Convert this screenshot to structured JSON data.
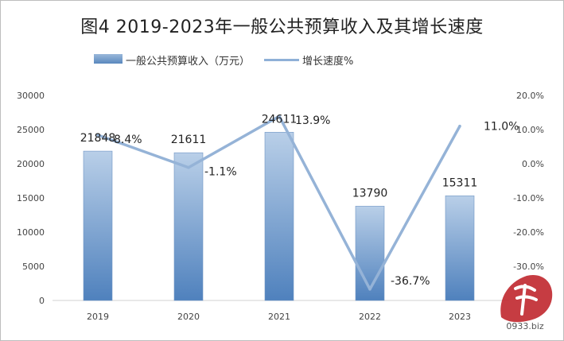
{
  "title": "图4   2019-2023年一般公共预算收入及其增长速度",
  "legend": {
    "bar": "一般公共预算收入（万元）",
    "line": "增长速度%"
  },
  "watermark_text": "0933.biz",
  "colors": {
    "bar_top": "#b9cfe8",
    "bar_bottom": "#4f81bd",
    "line": "#95b3d7"
  },
  "chart_data": {
    "type": "bar",
    "categories": [
      "2019",
      "2020",
      "2021",
      "2022",
      "2023"
    ],
    "series": [
      {
        "name": "一般公共预算收入（万元）",
        "type": "bar",
        "axis": "left",
        "values": [
          21848,
          21611,
          24611,
          13790,
          15311
        ],
        "labels": [
          "21848",
          "21611",
          "24611",
          "13790",
          "15311"
        ]
      },
      {
        "name": "增长速度%",
        "type": "line",
        "axis": "right",
        "values": [
          8.4,
          -1.1,
          13.9,
          -36.7,
          11.0
        ],
        "labels": [
          "8.4%",
          "-1.1%",
          "13.9%",
          "-36.7%",
          "11.0%"
        ]
      }
    ],
    "y_left": {
      "min": 0,
      "max": 30000,
      "ticks": [
        "0",
        "5000",
        "10000",
        "15000",
        "20000",
        "25000",
        "30000"
      ]
    },
    "y_right": {
      "min": -40,
      "max": 20,
      "ticks": [
        "-30.0%",
        "-20.0%",
        "-10.0%",
        "0.0%",
        "10.0%",
        "20.0%"
      ],
      "tick_values": [
        -30,
        -20,
        -10,
        0,
        10,
        20
      ]
    },
    "grid": false,
    "legend_position": "top-left"
  }
}
